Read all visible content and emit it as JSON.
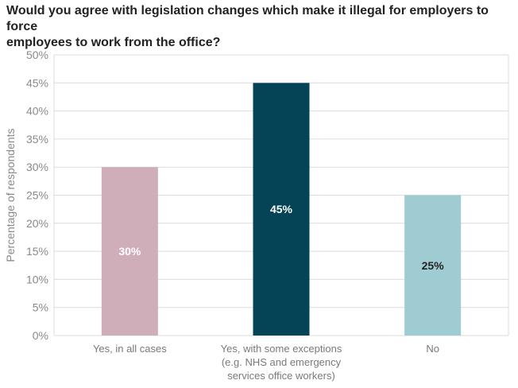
{
  "chart_data": {
    "type": "bar",
    "title": "Would you agree with legislation changes which make it illegal for employers to force\nemployees to work from the office?",
    "xlabel": "",
    "ylabel": "Percentage of respondents",
    "ylim": [
      0,
      50
    ],
    "ytick_step": 5,
    "ytick_suffix": "%",
    "grid": true,
    "categories": [
      "Yes, in all cases",
      "Yes, with some exceptions\n(e.g. NHS and emergency\nservices office workers)",
      "No"
    ],
    "values": [
      30,
      45,
      25
    ],
    "data_labels": [
      "30%",
      "45%",
      "25%"
    ],
    "colors": [
      "#cfadb9",
      "#054457",
      "#9fcbd3"
    ],
    "label_colors": [
      "#ffffff",
      "#ffffff",
      "#222222"
    ]
  }
}
